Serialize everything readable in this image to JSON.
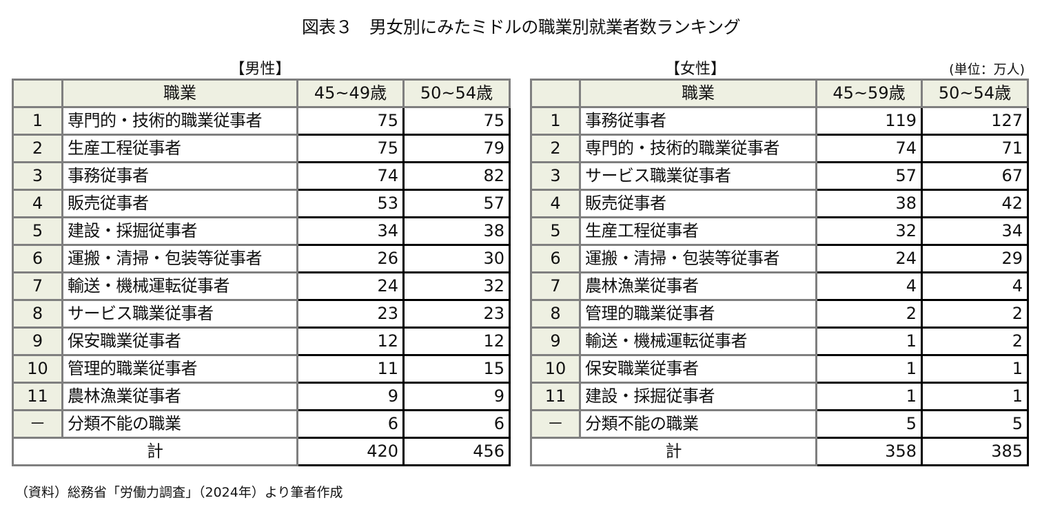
{
  "title": "図表３　男女別にみたミドルの職業別就業者数ランキング",
  "unit": "(単位：万人)",
  "source": "（資料）総務省「労働力調査」（2024年）より筆者作成",
  "male": {
    "label": "【男性】",
    "headers": {
      "rank": "",
      "occupation": "職業",
      "col1": "45~49歳",
      "col2": "50~54歳"
    },
    "rows": [
      {
        "rank": "1",
        "occupation": "専門的・技術的職業従事者",
        "col1": "75",
        "col2": "75"
      },
      {
        "rank": "2",
        "occupation": "生産工程従事者",
        "col1": "75",
        "col2": "79"
      },
      {
        "rank": "3",
        "occupation": "事務従事者",
        "col1": "74",
        "col2": "82"
      },
      {
        "rank": "4",
        "occupation": "販売従事者",
        "col1": "53",
        "col2": "57"
      },
      {
        "rank": "5",
        "occupation": "建設・採掘従事者",
        "col1": "34",
        "col2": "38"
      },
      {
        "rank": "6",
        "occupation": "運搬・清掃・包装等従事者",
        "col1": "26",
        "col2": "30"
      },
      {
        "rank": "7",
        "occupation": "輸送・機械運転従事者",
        "col1": "24",
        "col2": "32"
      },
      {
        "rank": "8",
        "occupation": "サービス職業従事者",
        "col1": "23",
        "col2": "23"
      },
      {
        "rank": "9",
        "occupation": "保安職業従事者",
        "col1": "12",
        "col2": "12"
      },
      {
        "rank": "10",
        "occupation": "管理的職業従事者",
        "col1": "11",
        "col2": "15"
      },
      {
        "rank": "11",
        "occupation": "農林漁業従事者",
        "col1": "9",
        "col2": "9"
      },
      {
        "rank": "－",
        "occupation": "分類不能の職業",
        "col1": "6",
        "col2": "6"
      }
    ],
    "total": {
      "label": "計",
      "col1": "420",
      "col2": "456"
    }
  },
  "female": {
    "label": "【女性】",
    "headers": {
      "rank": "",
      "occupation": "職業",
      "col1": "45~59歳",
      "col2": "50~54歳"
    },
    "rows": [
      {
        "rank": "1",
        "occupation": "事務従事者",
        "col1": "119",
        "col2": "127"
      },
      {
        "rank": "2",
        "occupation": "専門的・技術的職業従事者",
        "col1": "74",
        "col2": "71"
      },
      {
        "rank": "3",
        "occupation": "サービス職業従事者",
        "col1": "57",
        "col2": "67"
      },
      {
        "rank": "4",
        "occupation": "販売従事者",
        "col1": "38",
        "col2": "42"
      },
      {
        "rank": "5",
        "occupation": "生産工程従事者",
        "col1": "32",
        "col2": "34"
      },
      {
        "rank": "6",
        "occupation": "運搬・清掃・包装等従事者",
        "col1": "24",
        "col2": "29"
      },
      {
        "rank": "7",
        "occupation": "農林漁業従事者",
        "col1": "4",
        "col2": "4"
      },
      {
        "rank": "8",
        "occupation": "管理的職業従事者",
        "col1": "2",
        "col2": "2"
      },
      {
        "rank": "9",
        "occupation": "輸送・機械運転従事者",
        "col1": "1",
        "col2": "2"
      },
      {
        "rank": "10",
        "occupation": "保安職業従事者",
        "col1": "1",
        "col2": "1"
      },
      {
        "rank": "11",
        "occupation": "建設・採掘従事者",
        "col1": "1",
        "col2": "1"
      },
      {
        "rank": "－",
        "occupation": "分類不能の職業",
        "col1": "5",
        "col2": "5"
      }
    ],
    "total": {
      "label": "計",
      "col1": "358",
      "col2": "385"
    }
  },
  "colors": {
    "header_fill": "#eef0e2",
    "grid_border": "#7f7f7f",
    "data_border": "#000000"
  }
}
